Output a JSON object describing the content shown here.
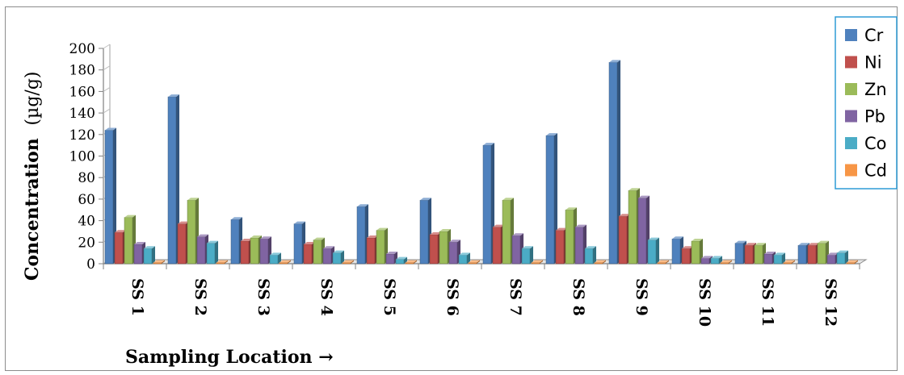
{
  "chart_data": {
    "type": "bar",
    "xlabel": "Sampling Location →",
    "ylabel_main": "Concentration",
    "ylabel_unit": "(µg/g)",
    "ylim": [
      0,
      200
    ],
    "yticks": [
      "0",
      "20",
      "40",
      "60",
      "80",
      "100",
      "120",
      "140",
      "160",
      "180",
      "200"
    ],
    "grid": false,
    "legend_position": "right",
    "categories": [
      "SS 1",
      "SS 2",
      "SS 3",
      "SS 4",
      "SS 5",
      "SS 6",
      "SS 7",
      "SS 8",
      "SS 9",
      "SS 10",
      "SS 11",
      "SS 12"
    ],
    "series": [
      {
        "name": "Cr",
        "color": "#4f81bd",
        "values": [
          124,
          155,
          41,
          37,
          53,
          59,
          110,
          119,
          187,
          23,
          19,
          17
        ]
      },
      {
        "name": "Ni",
        "color": "#c0504d",
        "values": [
          29,
          37,
          21,
          18,
          24,
          27,
          34,
          31,
          44,
          14,
          17,
          17
        ]
      },
      {
        "name": "Zn",
        "color": "#9bbb59",
        "values": [
          43,
          59,
          24,
          22,
          31,
          30,
          59,
          50,
          68,
          21,
          17,
          19
        ]
      },
      {
        "name": "Pb",
        "color": "#8064a2",
        "values": [
          18,
          25,
          23,
          14,
          9,
          20,
          26,
          34,
          61,
          5,
          9,
          8
        ]
      },
      {
        "name": "Co",
        "color": "#4bacc6",
        "values": [
          14,
          19,
          8,
          10,
          4,
          8,
          14,
          14,
          22,
          5,
          8,
          10
        ]
      },
      {
        "name": "Cd",
        "color": "#f79646",
        "values": [
          1,
          1,
          1,
          1,
          1,
          1,
          1,
          1,
          1,
          1,
          1,
          1
        ]
      }
    ]
  }
}
